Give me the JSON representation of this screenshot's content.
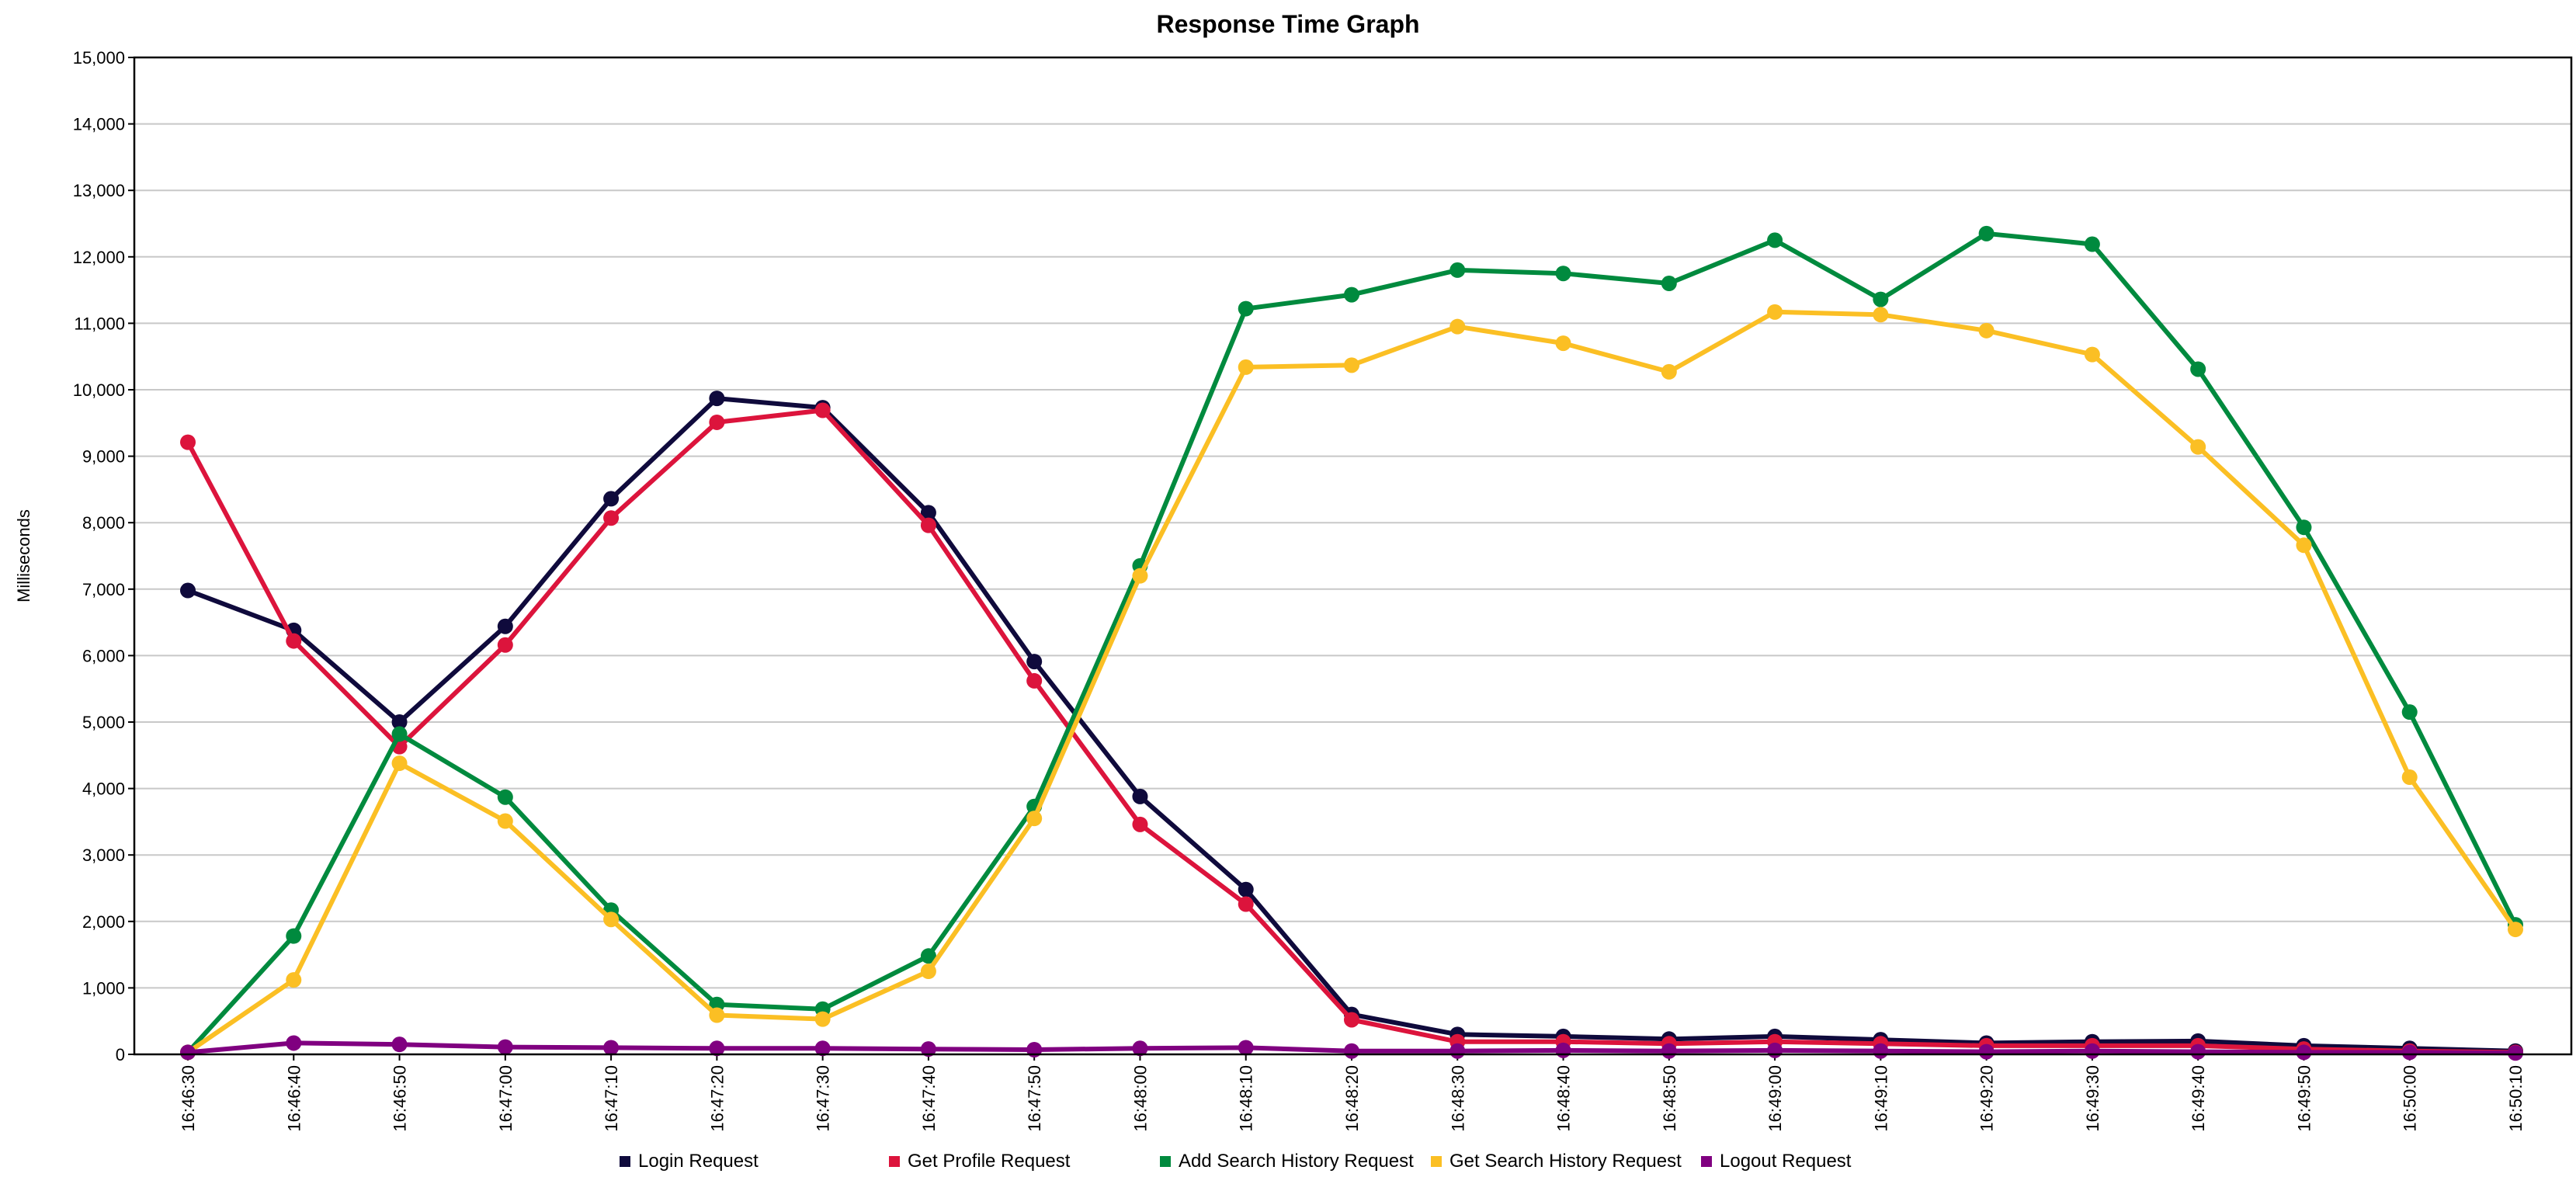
{
  "chart_data": {
    "type": "line",
    "title": "Response Time Graph",
    "xlabel": "",
    "ylabel": "Milliseconds",
    "ylim": [
      0,
      15000
    ],
    "grid": true,
    "legend_position": "bottom",
    "yticks": [
      "0",
      "1,000",
      "2,000",
      "3,000",
      "4,000",
      "5,000",
      "6,000",
      "7,000",
      "8,000",
      "9,000",
      "10,000",
      "11,000",
      "12,000",
      "13,000",
      "14,000",
      "15,000"
    ],
    "categories": [
      "16:46:30",
      "16:46:40",
      "16:46:50",
      "16:47:00",
      "16:47:10",
      "16:47:20",
      "16:47:30",
      "16:47:40",
      "16:47:50",
      "16:48:00",
      "16:48:10",
      "16:48:20",
      "16:48:30",
      "16:48:40",
      "16:48:50",
      "16:49:00",
      "16:49:10",
      "16:49:20",
      "16:49:30",
      "16:49:40",
      "16:49:50",
      "16:50:00",
      "16:50:10"
    ],
    "series": [
      {
        "name": "Login Request",
        "color": "#0f0a3c",
        "values": [
          6980,
          6380,
          5000,
          6440,
          8360,
          9870,
          9730,
          8150,
          5910,
          3880,
          2480,
          600,
          300,
          270,
          230,
          270,
          220,
          170,
          190,
          200,
          130,
          90,
          50
        ]
      },
      {
        "name": "Get Profile Request",
        "color": "#dc143c",
        "values": [
          9210,
          6220,
          4630,
          6160,
          8070,
          9510,
          9690,
          7960,
          5620,
          3460,
          2260,
          520,
          190,
          190,
          160,
          190,
          160,
          130,
          130,
          130,
          80,
          50,
          30
        ]
      },
      {
        "name": "Add Search History Request",
        "color": "#008a3e",
        "values": [
          30,
          1780,
          4820,
          3870,
          2170,
          750,
          680,
          1480,
          3730,
          7350,
          11220,
          11430,
          11800,
          11750,
          11600,
          12250,
          11360,
          12350,
          12190,
          10310,
          7930,
          5150,
          1950
        ]
      },
      {
        "name": "Get Search History Request",
        "color": "#fbbf24",
        "values": [
          30,
          1120,
          4380,
          3510,
          2030,
          590,
          530,
          1250,
          3550,
          7200,
          10340,
          10370,
          10950,
          10700,
          10270,
          11170,
          11130,
          10890,
          10530,
          9140,
          7660,
          4170,
          1880
        ]
      },
      {
        "name": "Logout Request",
        "color": "#800080",
        "values": [
          30,
          170,
          150,
          110,
          100,
          90,
          90,
          80,
          70,
          90,
          100,
          50,
          50,
          60,
          50,
          60,
          50,
          40,
          50,
          40,
          30,
          30,
          20
        ]
      }
    ]
  }
}
